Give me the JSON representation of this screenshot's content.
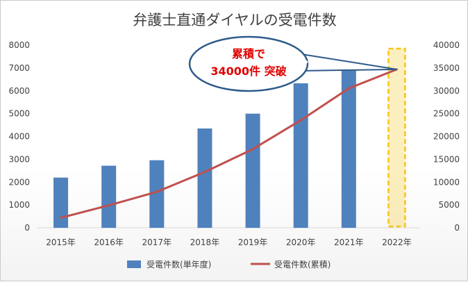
{
  "chart_data": {
    "type": "bar",
    "title": "弁護士直通ダイヤルの受電件数",
    "categories": [
      "2015年",
      "2016年",
      "2017年",
      "2018年",
      "2019年",
      "2020年",
      "2021年",
      "2022年"
    ],
    "series": [
      {
        "name": "受電件数(単年度)",
        "type": "bar",
        "axis": "left",
        "color": "#4f81bd",
        "values": [
          2200,
          2720,
          2960,
          4350,
          5000,
          6330,
          6970,
          null
        ]
      },
      {
        "name": "受電件数(累積)",
        "type": "line",
        "axis": "right",
        "color": "#c0504d",
        "values": [
          2200,
          4920,
          7880,
          12230,
          17230,
          23560,
          30530,
          34700
        ]
      }
    ],
    "y_left": {
      "min": 0,
      "max": 8000,
      "step": 1000
    },
    "y_right": {
      "min": 0,
      "max": 40000,
      "step": 5000
    },
    "grid": false,
    "legend_position": "bottom",
    "highlight_category": "2022年",
    "highlight_color": "#f5c518",
    "callout": {
      "line1": "累積で",
      "line2": "34000件 突破"
    }
  }
}
